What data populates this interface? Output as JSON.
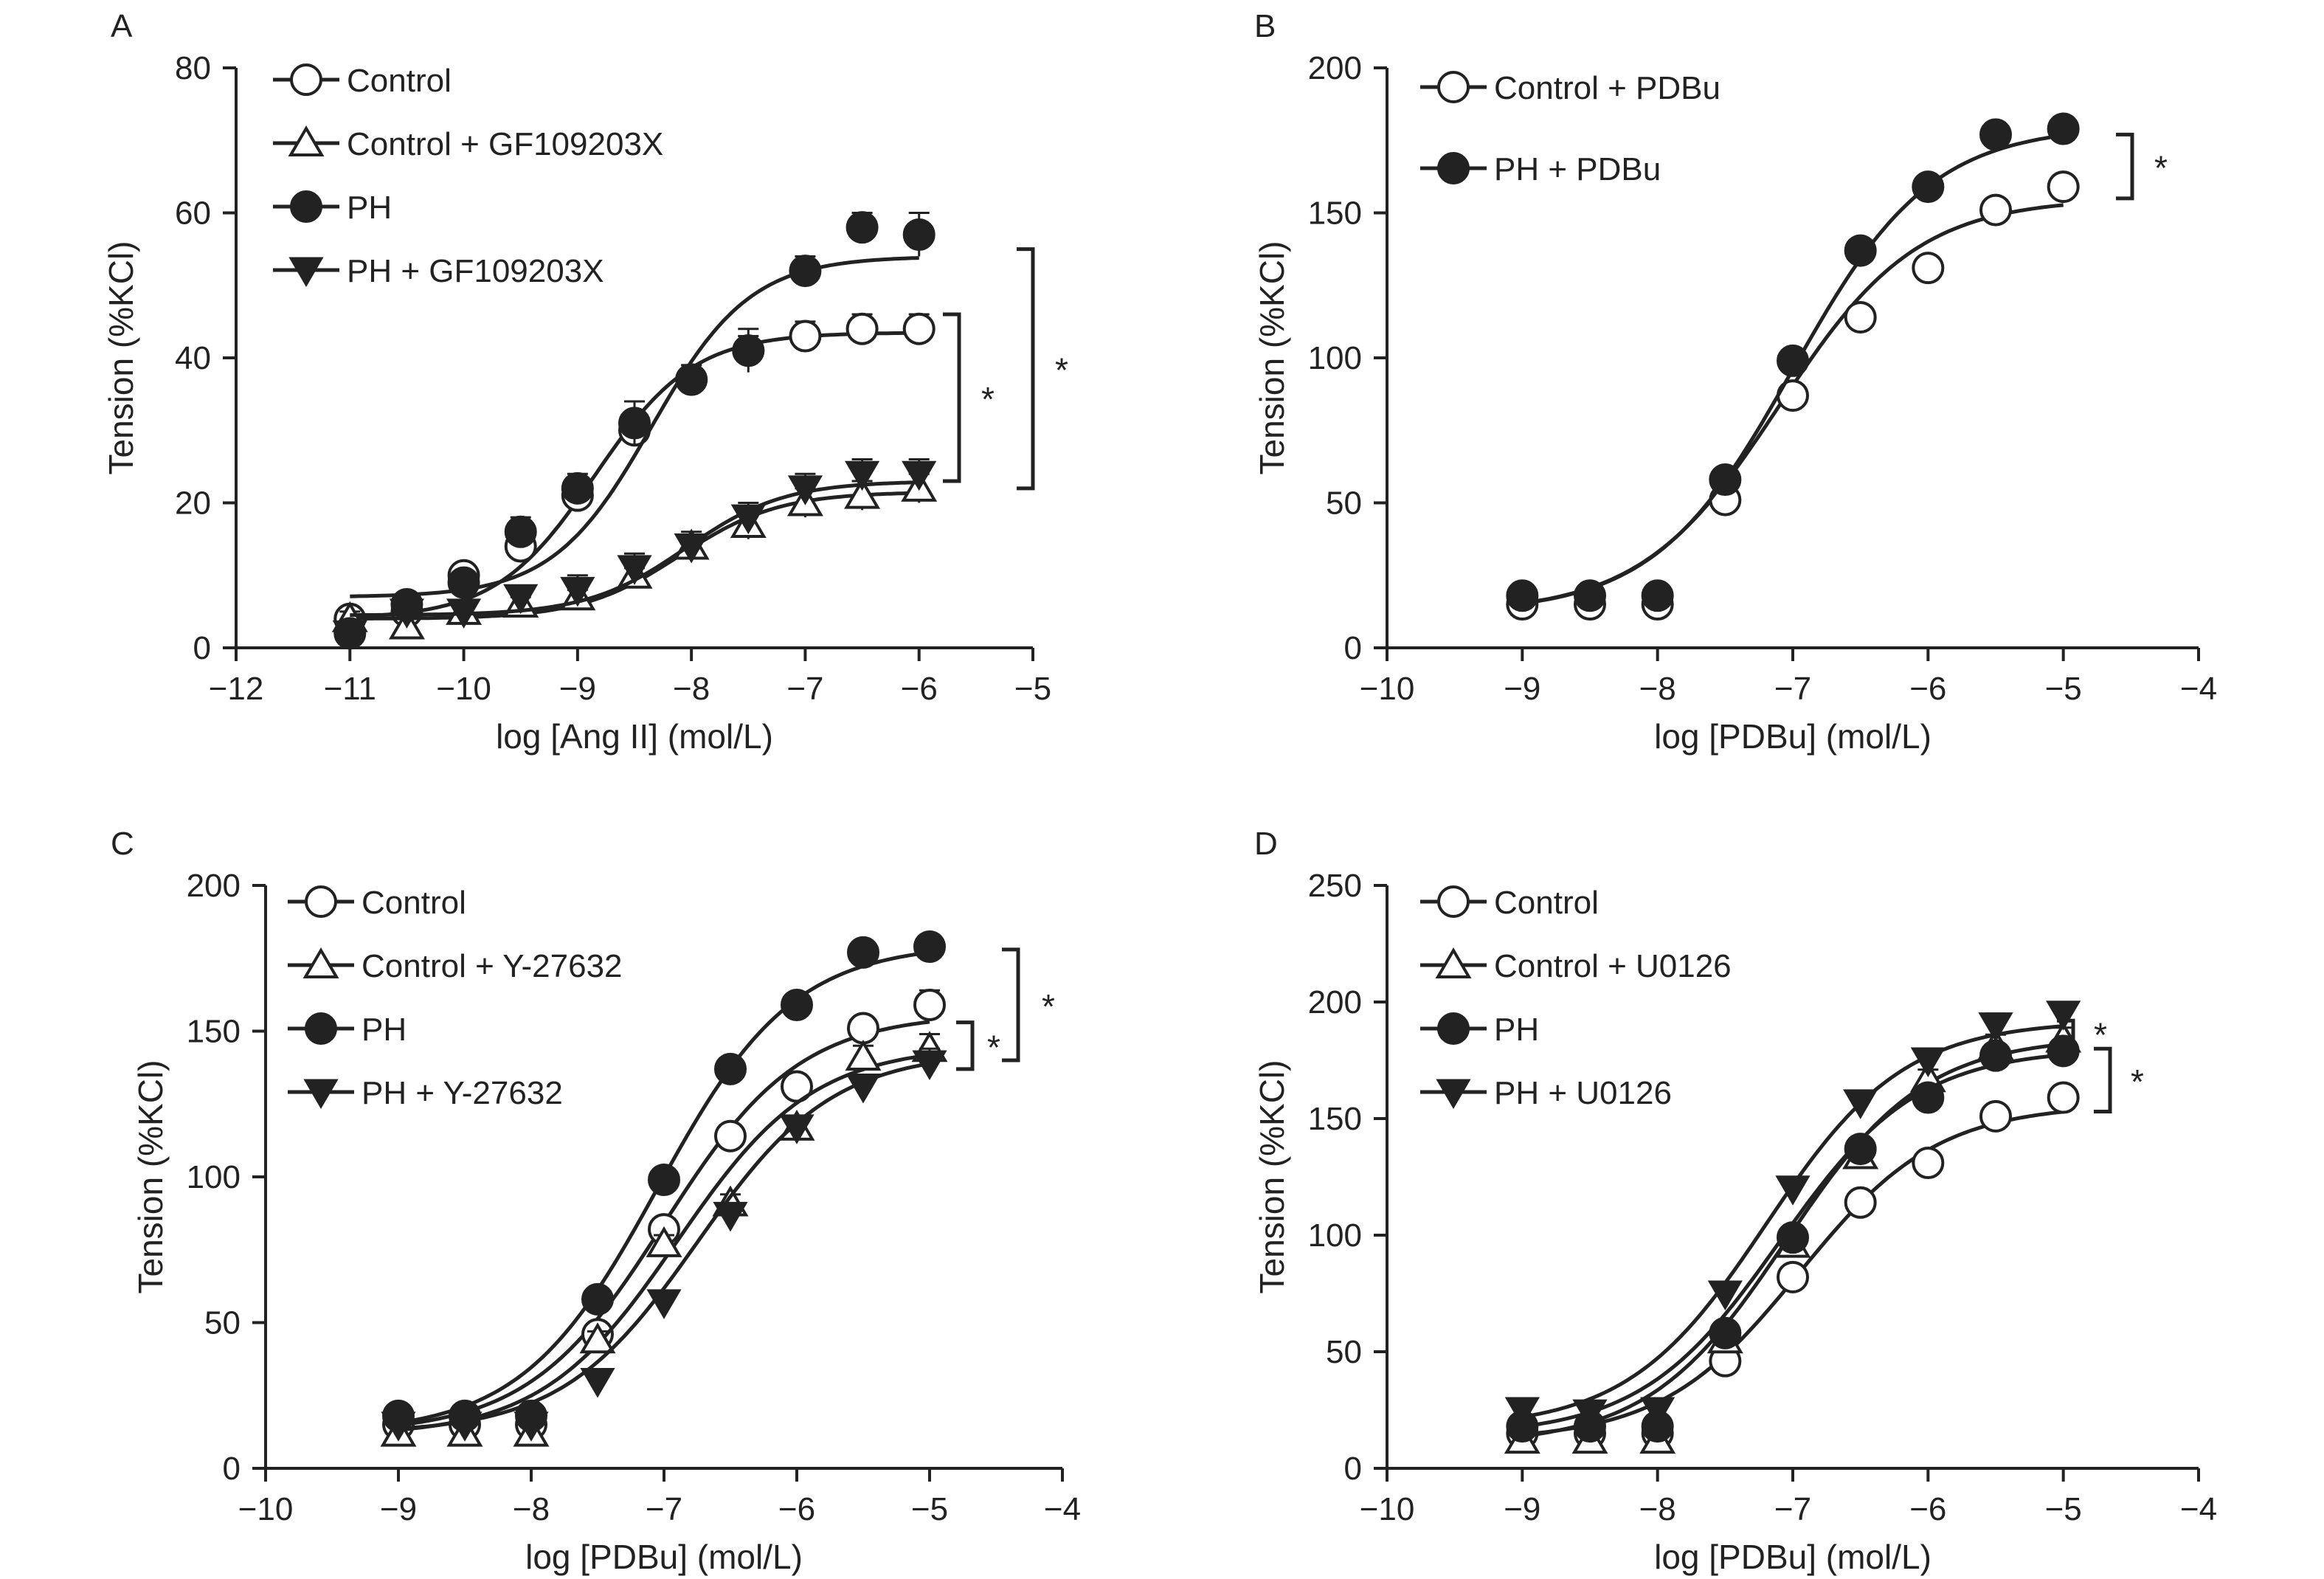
{
  "colors": {
    "ink": "#222222",
    "open_fill": "#ffffff"
  },
  "chart_data": [
    {
      "panel": "A",
      "type": "line",
      "xlabel": "log [Ang II] (mol/L)",
      "ylabel": "Tension (%KCl)",
      "xlim": [
        -12,
        -5
      ],
      "ylim": [
        0,
        80
      ],
      "xticks": [
        -12,
        -11,
        -10,
        -9,
        -8,
        -7,
        -6,
        -5
      ],
      "yticks": [
        0,
        20,
        40,
        60,
        80
      ],
      "legend_position": "top-left",
      "series": [
        {
          "name": "Control",
          "marker": "circle-open",
          "x": [
            -11,
            -10.5,
            -10,
            -9.5,
            -9,
            -8.5,
            -8,
            -7.5,
            -7,
            -6.5,
            -6
          ],
          "y": [
            4,
            5,
            10,
            14,
            21,
            30,
            37,
            41,
            43,
            44,
            44
          ],
          "err": [
            1,
            1,
            1,
            1,
            2,
            2,
            2,
            2,
            2,
            2,
            2
          ],
          "fit": {
            "bottom": 4,
            "top": 43.5,
            "logec50": -8.85,
            "hill": 1.0
          }
        },
        {
          "name": "Control + GF109203X",
          "marker": "triangle-open",
          "x": [
            -11,
            -10.5,
            -10,
            -9.5,
            -9,
            -8.5,
            -8,
            -7.5,
            -7,
            -6.5,
            -6
          ],
          "y": [
            4,
            3,
            5,
            6,
            7,
            10,
            14,
            17,
            20,
            21,
            22
          ],
          "err": [
            1,
            1,
            1,
            1,
            1,
            1,
            1,
            2,
            2,
            2,
            2
          ],
          "fit": {
            "bottom": 4,
            "top": 21.5,
            "logec50": -8.1,
            "hill": 1.0
          }
        },
        {
          "name": "PH",
          "marker": "circle-filled",
          "x": [
            -11,
            -10.5,
            -10,
            -9.5,
            -9,
            -8.5,
            -8,
            -7.5,
            -7,
            -6.5,
            -6
          ],
          "y": [
            2,
            6,
            9,
            16,
            22,
            31,
            37,
            41,
            52,
            58,
            57
          ],
          "err": [
            1,
            1,
            1,
            2,
            2,
            3,
            2,
            3,
            2,
            2,
            3
          ],
          "fit": {
            "bottom": 7,
            "top": 54,
            "logec50": -8.35,
            "hill": 1.0
          }
        },
        {
          "name": "PH + GF109203X",
          "marker": "triangle-down-filled",
          "x": [
            -11,
            -10.5,
            -10,
            -9.5,
            -9,
            -8.5,
            -8,
            -7.5,
            -7,
            -6.5,
            -6
          ],
          "y": [
            2,
            5,
            5,
            7,
            8,
            11,
            14,
            18,
            22,
            24,
            24
          ],
          "err": [
            1,
            1,
            1,
            1,
            2,
            2,
            2,
            2,
            2,
            2,
            2
          ],
          "fit": {
            "bottom": 4.5,
            "top": 23,
            "logec50": -8.05,
            "hill": 1.0
          }
        }
      ],
      "significance": [
        {
          "label": "*",
          "y_from": 23,
          "y_to": 46
        },
        {
          "label": "*",
          "y_from": 22,
          "y_to": 55
        }
      ]
    },
    {
      "panel": "B",
      "type": "line",
      "xlabel": "log [PDBu] (mol/L)",
      "ylabel": "Tension (%KCl)",
      "xlim": [
        -10,
        -4
      ],
      "ylim": [
        0,
        200
      ],
      "xticks": [
        -10,
        -9,
        -8,
        -7,
        -6,
        -5,
        -4
      ],
      "yticks": [
        0,
        50,
        100,
        150,
        200
      ],
      "legend_position": "top-left",
      "series": [
        {
          "name": "Control + PDBu",
          "marker": "circle-open",
          "x": [
            -9,
            -8.5,
            -8,
            -7.5,
            -7,
            -6.5,
            -6,
            -5.5,
            -5
          ],
          "y": [
            15,
            15,
            15,
            51,
            87,
            114,
            131,
            151,
            159
          ],
          "err": [
            2,
            2,
            2,
            3,
            3,
            3,
            4,
            4,
            4
          ],
          "fit": {
            "bottom": 12,
            "top": 155,
            "logec50": -7.1,
            "hill": 0.85
          }
        },
        {
          "name": "PH + PDBu",
          "marker": "circle-filled",
          "x": [
            -9,
            -8.5,
            -8,
            -7.5,
            -7,
            -6.5,
            -6,
            -5.5,
            -5
          ],
          "y": [
            18,
            18,
            18,
            58,
            99,
            137,
            159,
            177,
            179
          ],
          "err": [
            2,
            2,
            2,
            3,
            3,
            3,
            3,
            4,
            4
          ],
          "fit": {
            "bottom": 12,
            "top": 180,
            "logec50": -7.0,
            "hill": 0.85
          }
        }
      ],
      "significance": [
        {
          "label": "*",
          "y_from": 155,
          "y_to": 177
        }
      ]
    },
    {
      "panel": "C",
      "type": "line",
      "xlabel": "log [PDBu] (mol/L)",
      "ylabel": "Tension (%KCl)",
      "xlim": [
        -10,
        -4
      ],
      "ylim": [
        0,
        200
      ],
      "xticks": [
        -10,
        -9,
        -8,
        -7,
        -6,
        -5,
        -4
      ],
      "yticks": [
        0,
        50,
        100,
        150,
        200
      ],
      "legend_position": "top-left",
      "series": [
        {
          "name": "Control",
          "marker": "circle-open",
          "x": [
            -9,
            -8.5,
            -8,
            -7.5,
            -7,
            -6.5,
            -6,
            -5.5,
            -5
          ],
          "y": [
            15,
            15,
            15,
            46,
            82,
            114,
            131,
            151,
            159
          ],
          "err": [
            2,
            2,
            2,
            3,
            3,
            3,
            4,
            4,
            5
          ],
          "fit": {
            "bottom": 12,
            "top": 156,
            "logec50": -7.0,
            "hill": 0.85
          }
        },
        {
          "name": "Control + Y-27632",
          "marker": "triangle-open",
          "x": [
            -9,
            -8.5,
            -8,
            -7.5,
            -7,
            -6.5,
            -6,
            -5.5,
            -5
          ],
          "y": [
            12,
            12,
            12,
            44,
            77,
            91,
            117,
            141,
            144
          ],
          "err": [
            2,
            2,
            3,
            3,
            3,
            3,
            4,
            4,
            5
          ],
          "fit": {
            "bottom": 11,
            "top": 145,
            "logec50": -6.9,
            "hill": 0.85
          }
        },
        {
          "name": "PH",
          "marker": "circle-filled",
          "x": [
            -9,
            -8.5,
            -8,
            -7.5,
            -7,
            -6.5,
            -6,
            -5.5,
            -5
          ],
          "y": [
            18,
            18,
            18,
            58,
            99,
            137,
            159,
            177,
            179
          ],
          "err": [
            2,
            2,
            2,
            3,
            3,
            3,
            3,
            4,
            4
          ],
          "fit": {
            "bottom": 12,
            "top": 180,
            "logec50": -7.05,
            "hill": 0.85
          }
        },
        {
          "name": "PH + Y-27632",
          "marker": "triangle-down-filled",
          "x": [
            -9,
            -8.5,
            -8,
            -7.5,
            -7,
            -6.5,
            -6,
            -5.5,
            -5
          ],
          "y": [
            15,
            15,
            15,
            30,
            57,
            87,
            117,
            131,
            139
          ],
          "err": [
            2,
            2,
            2,
            3,
            3,
            3,
            4,
            4,
            5
          ],
          "fit": {
            "bottom": 12,
            "top": 143,
            "logec50": -6.75,
            "hill": 0.85
          }
        }
      ],
      "significance": [
        {
          "label": "*",
          "y_from": 140,
          "y_to": 178
        },
        {
          "label": "*",
          "y_from": 137,
          "y_to": 153
        }
      ]
    },
    {
      "panel": "D",
      "type": "line",
      "xlabel": "log [PDBu] (mol/L)",
      "ylabel": "Tension (%KCl)",
      "xlim": [
        -10,
        -4
      ],
      "ylim": [
        0,
        250
      ],
      "xticks": [
        -10,
        -9,
        -8,
        -7,
        -6,
        -5,
        -4
      ],
      "yticks": [
        0,
        50,
        100,
        150,
        200,
        250
      ],
      "legend_position": "top-left",
      "series": [
        {
          "name": "Control",
          "marker": "circle-open",
          "x": [
            -9,
            -8.5,
            -8,
            -7.5,
            -7,
            -6.5,
            -6,
            -5.5,
            -5
          ],
          "y": [
            15,
            15,
            15,
            46,
            82,
            114,
            131,
            151,
            159
          ],
          "err": [
            2,
            2,
            2,
            3,
            3,
            3,
            4,
            4,
            5
          ],
          "fit": {
            "bottom": 12,
            "top": 156,
            "logec50": -6.95,
            "hill": 0.85
          }
        },
        {
          "name": "Control + U0126",
          "marker": "triangle-open",
          "x": [
            -9,
            -8.5,
            -8,
            -7.5,
            -7,
            -6.5,
            -6,
            -5.5,
            -5
          ],
          "y": [
            12,
            12,
            12,
            55,
            96,
            134,
            167,
            181,
            184
          ],
          "err": [
            2,
            2,
            2,
            3,
            3,
            4,
            4,
            5,
            5
          ],
          "fit": {
            "bottom": 10,
            "top": 185,
            "logec50": -7.05,
            "hill": 0.85
          }
        },
        {
          "name": "PH",
          "marker": "circle-filled",
          "x": [
            -9,
            -8.5,
            -8,
            -7.5,
            -7,
            -6.5,
            -6,
            -5.5,
            -5
          ],
          "y": [
            18,
            18,
            18,
            58,
            99,
            137,
            159,
            177,
            179
          ],
          "err": [
            2,
            2,
            2,
            3,
            3,
            3,
            3,
            4,
            4
          ],
          "fit": {
            "bottom": 14,
            "top": 180,
            "logec50": -7.1,
            "hill": 0.85
          }
        },
        {
          "name": "PH + U0126",
          "marker": "triangle-down-filled",
          "x": [
            -9,
            -8.5,
            -8,
            -7.5,
            -7,
            -6.5,
            -6,
            -5.5,
            -5
          ],
          "y": [
            25,
            24,
            25,
            75,
            120,
            157,
            175,
            190,
            195
          ],
          "err": [
            2,
            2,
            2,
            3,
            3,
            4,
            4,
            5,
            5
          ],
          "fit": {
            "bottom": 17,
            "top": 192,
            "logec50": -7.2,
            "hill": 0.85
          }
        }
      ],
      "significance": [
        {
          "label": "*",
          "y_from": 181,
          "y_to": 192
        },
        {
          "label": "*",
          "y_from": 153,
          "y_to": 180
        }
      ]
    }
  ]
}
